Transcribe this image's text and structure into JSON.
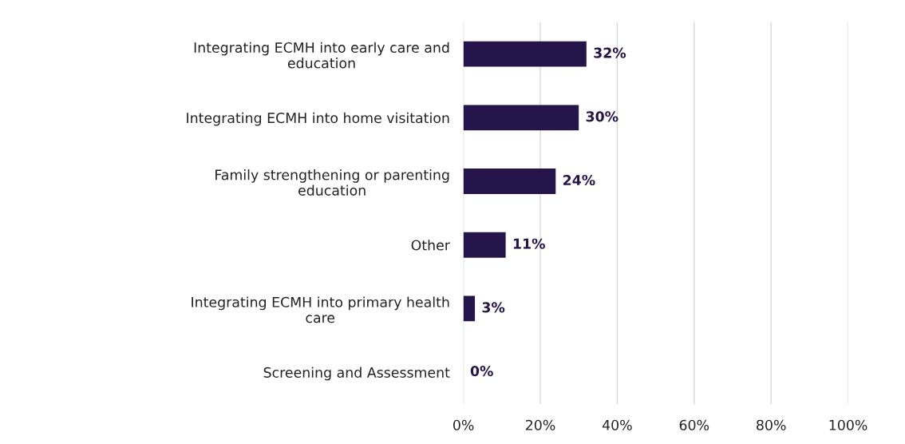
{
  "chart_data": {
    "type": "bar",
    "orientation": "horizontal",
    "categories": [
      "Integrating ECMH into early care and education",
      "Integrating ECMH into home visitation",
      "Family strengthening or parenting education",
      "Other",
      "Integrating ECMH into primary health care",
      "Screening and Assessment"
    ],
    "values": [
      32,
      30,
      24,
      11,
      3,
      0
    ],
    "value_labels": [
      "32%",
      "30%",
      "24%",
      "11%",
      "3%",
      "0%"
    ],
    "color": "#25154a",
    "xlim": [
      0,
      100
    ],
    "xticks": [
      {
        "value": 0,
        "label": "0%"
      },
      {
        "value": 20,
        "label": "20%"
      },
      {
        "value": 40,
        "label": "40%"
      },
      {
        "value": 60,
        "label": "60%"
      },
      {
        "value": 80,
        "label": "80%"
      },
      {
        "value": 100,
        "label": "100%"
      }
    ],
    "grid": "x"
  }
}
